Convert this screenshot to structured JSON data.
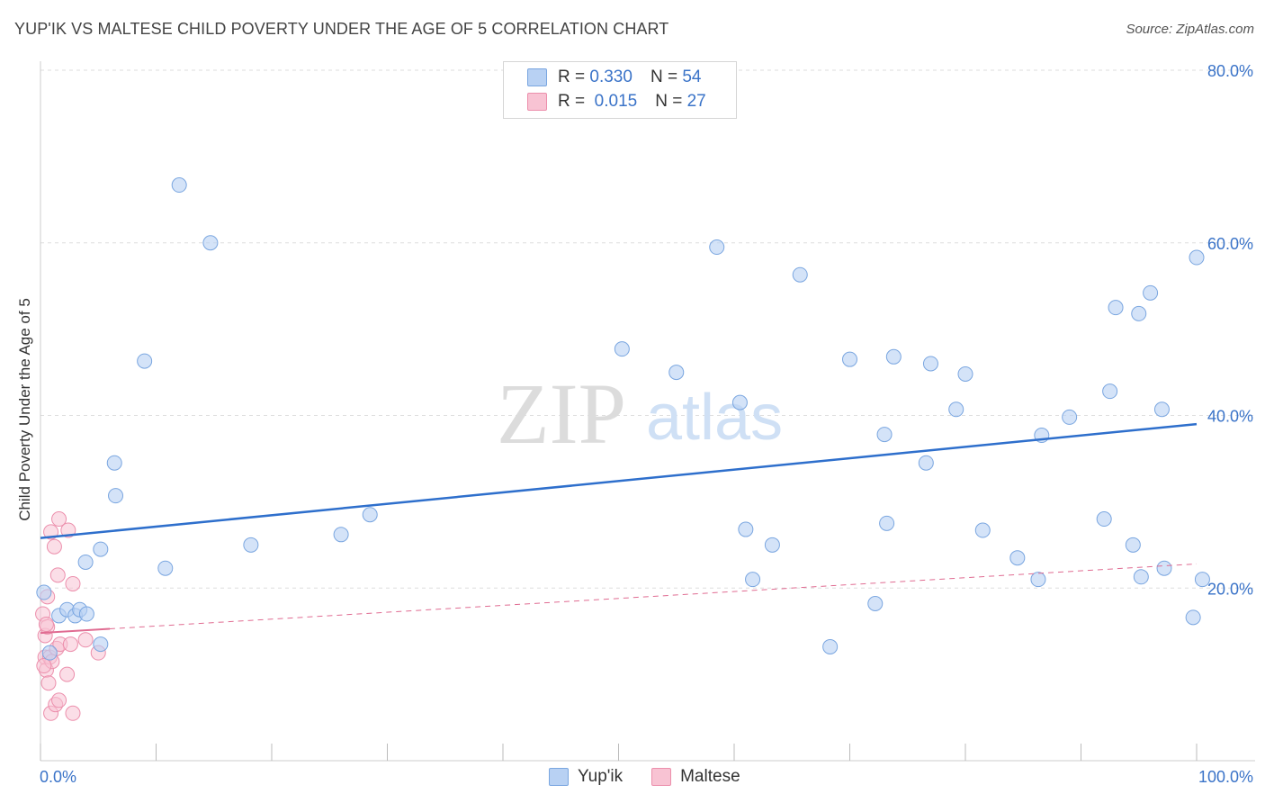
{
  "header": {
    "title": "YUP'IK VS MALTESE CHILD POVERTY UNDER THE AGE OF 5 CORRELATION CHART",
    "source": "Source: ZipAtlas.com"
  },
  "legend": {
    "rows": [
      {
        "r_label": "R =",
        "r_value": "0.330",
        "n_label": "N =",
        "n_value": "54",
        "color": "#b8d1f3"
      },
      {
        "r_label": "R =",
        "r_value": "0.015",
        "n_label": "N =",
        "n_value": "27",
        "color": "#f8c3d3"
      }
    ]
  },
  "bottom_legend": {
    "series1": "Yup'ik",
    "series2": "Maltese"
  },
  "watermark": {
    "zip": "ZIP",
    "atlas": "atlas"
  },
  "chart_data": {
    "type": "scatter",
    "title": "YUP'IK VS MALTESE CHILD POVERTY UNDER THE AGE OF 5 CORRELATION CHART",
    "xlabel": "",
    "ylabel": "Child Poverty Under the Age of 5",
    "xlim": [
      0,
      100
    ],
    "ylim": [
      0,
      80
    ],
    "x_tick_labels": [
      "0.0%",
      "100.0%"
    ],
    "y_ticks": [
      20,
      40,
      60,
      80
    ],
    "y_tick_labels": [
      "20.0%",
      "40.0%",
      "60.0%",
      "80.0%"
    ],
    "grid": true,
    "colors": {
      "yupik_fill": "#b8d1f3",
      "yupik_stroke": "#7aa6e0",
      "yupik_line": "#2e6fcc",
      "maltese_fill": "#f8c3d3",
      "maltese_stroke": "#ec8fac",
      "maltese_line": "#e06c92",
      "tick_label": "#3a73c8"
    },
    "series": [
      {
        "name": "Yup'ik",
        "points": [
          [
            0.3,
            19.5
          ],
          [
            0.8,
            12.5
          ],
          [
            1.6,
            16.8
          ],
          [
            2.3,
            17.5
          ],
          [
            3.0,
            16.8
          ],
          [
            3.4,
            17.5
          ],
          [
            4.0,
            17.0
          ],
          [
            3.9,
            23.0
          ],
          [
            5.2,
            13.5
          ],
          [
            5.2,
            24.5
          ],
          [
            6.4,
            34.5
          ],
          [
            6.5,
            30.7
          ],
          [
            9.0,
            46.3
          ],
          [
            10.8,
            22.3
          ],
          [
            12.0,
            66.7
          ],
          [
            14.7,
            60.0
          ],
          [
            18.2,
            25.0
          ],
          [
            26.0,
            26.2
          ],
          [
            28.5,
            28.5
          ],
          [
            50.3,
            47.7
          ],
          [
            55.0,
            45.0
          ],
          [
            58.5,
            59.5
          ],
          [
            60.5,
            41.5
          ],
          [
            61.0,
            26.8
          ],
          [
            61.6,
            21.0
          ],
          [
            63.3,
            25.0
          ],
          [
            65.7,
            56.3
          ],
          [
            68.3,
            13.2
          ],
          [
            70.0,
            46.5
          ],
          [
            72.2,
            18.2
          ],
          [
            73.0,
            37.8
          ],
          [
            73.2,
            27.5
          ],
          [
            73.8,
            46.8
          ],
          [
            76.6,
            34.5
          ],
          [
            77.0,
            46.0
          ],
          [
            79.2,
            40.7
          ],
          [
            80.0,
            44.8
          ],
          [
            81.5,
            26.7
          ],
          [
            84.5,
            23.5
          ],
          [
            86.3,
            21.0
          ],
          [
            86.6,
            37.7
          ],
          [
            89.0,
            39.8
          ],
          [
            92.0,
            28.0
          ],
          [
            92.5,
            42.8
          ],
          [
            93.0,
            52.5
          ],
          [
            94.5,
            25.0
          ],
          [
            95.0,
            51.8
          ],
          [
            95.2,
            21.3
          ],
          [
            96.0,
            54.2
          ],
          [
            97.0,
            40.7
          ],
          [
            97.2,
            22.3
          ],
          [
            99.7,
            16.6
          ],
          [
            100.0,
            58.3
          ],
          [
            100.5,
            21.0
          ]
        ],
        "trend": {
          "x": [
            0,
            100
          ],
          "y": [
            25.8,
            39.0
          ]
        }
      },
      {
        "name": "Maltese",
        "points": [
          [
            0.2,
            17.0
          ],
          [
            0.4,
            14.5
          ],
          [
            0.4,
            12.0
          ],
          [
            0.5,
            10.5
          ],
          [
            0.6,
            19.0
          ],
          [
            0.6,
            15.5
          ],
          [
            0.7,
            9.0
          ],
          [
            0.8,
            12.0
          ],
          [
            0.9,
            5.5
          ],
          [
            0.9,
            26.5
          ],
          [
            1.0,
            11.5
          ],
          [
            1.2,
            24.8
          ],
          [
            1.3,
            6.5
          ],
          [
            1.4,
            13.0
          ],
          [
            1.5,
            21.5
          ],
          [
            1.6,
            7.0
          ],
          [
            1.6,
            28.0
          ],
          [
            1.7,
            13.5
          ],
          [
            2.3,
            10.0
          ],
          [
            2.4,
            26.7
          ],
          [
            2.6,
            13.5
          ],
          [
            2.8,
            20.5
          ],
          [
            2.8,
            5.5
          ],
          [
            3.9,
            14.0
          ],
          [
            5.0,
            12.5
          ],
          [
            0.3,
            11.0
          ],
          [
            0.5,
            15.8
          ]
        ],
        "trend": {
          "x": [
            0,
            100
          ],
          "y": [
            14.8,
            22.8
          ]
        }
      }
    ]
  }
}
